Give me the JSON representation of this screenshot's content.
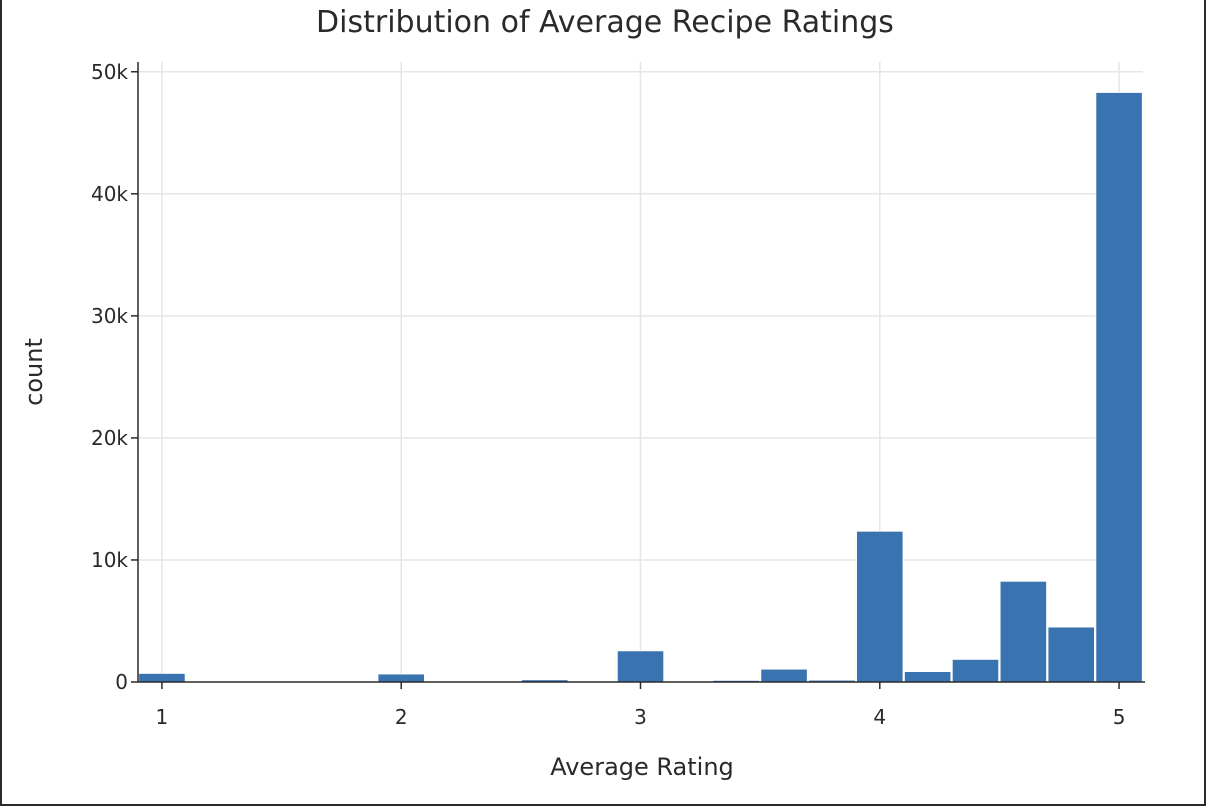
{
  "chart_data": {
    "type": "bar",
    "title": "Distribution of Average Recipe Ratings",
    "xlabel": "Average Rating",
    "ylabel": "count",
    "xlim": [
      0.9,
      5.1
    ],
    "ylim": [
      0,
      50800
    ],
    "x_ticks": [
      1,
      2,
      3,
      4,
      5
    ],
    "x_tick_labels": [
      "1",
      "2",
      "3",
      "4",
      "5"
    ],
    "y_ticks": [
      0,
      10000,
      20000,
      30000,
      40000,
      50000
    ],
    "y_tick_labels": [
      "0",
      "10k",
      "20k",
      "30k",
      "40k",
      "50k"
    ],
    "grid": true,
    "bar_color": "#3a74b0",
    "bins": [
      {
        "x0": 0.9,
        "x1": 1.1,
        "count": 700
      },
      {
        "x0": 1.1,
        "x1": 1.3,
        "count": 0
      },
      {
        "x0": 1.3,
        "x1": 1.5,
        "count": 0
      },
      {
        "x0": 1.5,
        "x1": 1.7,
        "count": 0
      },
      {
        "x0": 1.7,
        "x1": 1.9,
        "count": 0
      },
      {
        "x0": 1.9,
        "x1": 2.1,
        "count": 650
      },
      {
        "x0": 2.1,
        "x1": 2.3,
        "count": 0
      },
      {
        "x0": 2.3,
        "x1": 2.5,
        "count": 50
      },
      {
        "x0": 2.5,
        "x1": 2.7,
        "count": 180
      },
      {
        "x0": 2.7,
        "x1": 2.9,
        "count": 0
      },
      {
        "x0": 2.9,
        "x1": 3.1,
        "count": 2550
      },
      {
        "x0": 3.1,
        "x1": 3.3,
        "count": 0
      },
      {
        "x0": 3.3,
        "x1": 3.5,
        "count": 130
      },
      {
        "x0": 3.5,
        "x1": 3.7,
        "count": 1050
      },
      {
        "x0": 3.7,
        "x1": 3.9,
        "count": 150
      },
      {
        "x0": 3.9,
        "x1": 4.1,
        "count": 12350
      },
      {
        "x0": 4.1,
        "x1": 4.3,
        "count": 850
      },
      {
        "x0": 4.3,
        "x1": 4.5,
        "count": 1850
      },
      {
        "x0": 4.5,
        "x1": 4.7,
        "count": 8250
      },
      {
        "x0": 4.7,
        "x1": 4.9,
        "count": 4500
      },
      {
        "x0": 4.9,
        "x1": 5.1,
        "count": 48300
      }
    ]
  }
}
